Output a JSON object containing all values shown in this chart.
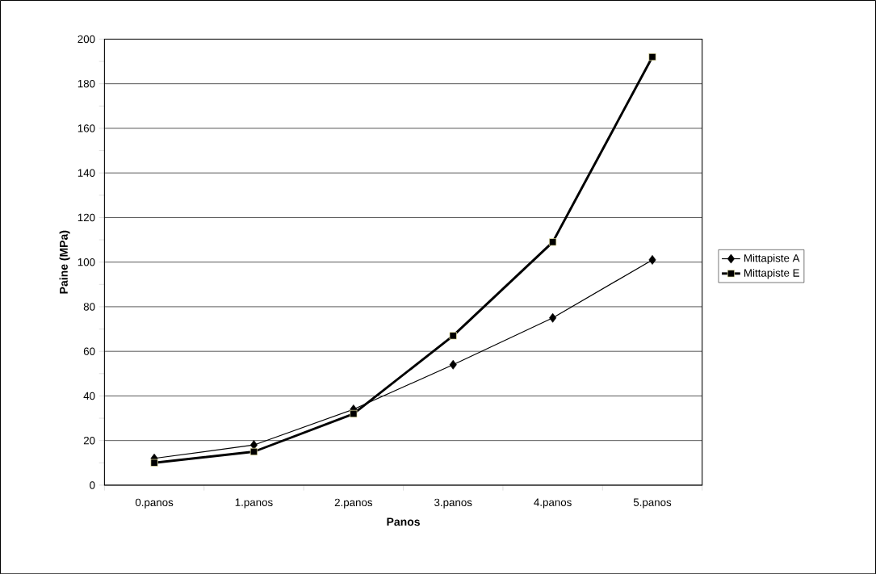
{
  "chart_data": {
    "type": "line",
    "xlabel": "Panos",
    "ylabel": "Paine (MPa)",
    "categories": [
      "0.panos",
      "1.panos",
      "2.panos",
      "3.panos",
      "4.panos",
      "5.panos"
    ],
    "series": [
      {
        "name": "Mittapiste A",
        "color": "#000000",
        "marker": "diamond",
        "values": [
          12,
          18,
          34,
          54,
          75,
          101
        ]
      },
      {
        "name": "Mittapiste E",
        "color": "#000000",
        "marker": "square",
        "values": [
          10,
          15,
          32,
          67,
          109,
          192
        ]
      }
    ],
    "ylim": [
      0,
      200
    ],
    "yticks": [
      0,
      20,
      40,
      60,
      80,
      100,
      120,
      140,
      160,
      180,
      200
    ],
    "grid": "y",
    "legend": "right"
  }
}
